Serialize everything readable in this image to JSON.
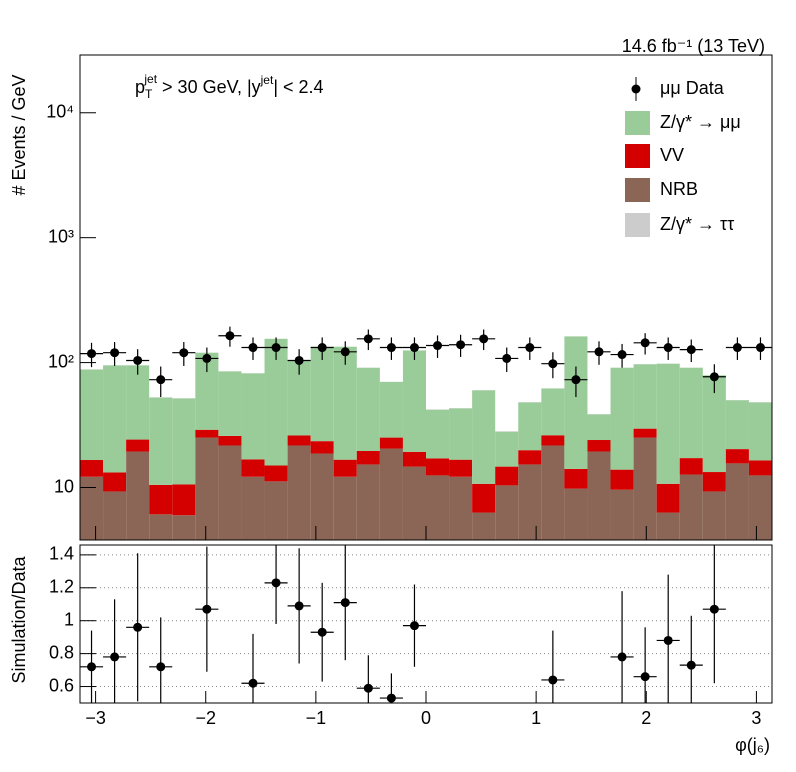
{
  "chart_data": [
    {
      "type": "stacked_histogram",
      "lumi": "14.6 fb⁻¹ (13 TeV)",
      "annotation": [
        "p",
        "T",
        "jet",
        " > 30 GeV,  |y",
        "jet",
        "| < 2.4"
      ],
      "ylabel": "# Events / GeV",
      "log_y": true,
      "xlim": [
        -3.1416,
        3.1416
      ],
      "ylim": [
        3.8,
        29000
      ],
      "yticks": [
        10,
        {
          "value": 100,
          "label": "10²"
        },
        {
          "value": 1000,
          "label": "10³"
        },
        {
          "value": 10000,
          "label": "10⁴"
        }
      ],
      "bins": [
        -3.1416,
        -2.9322,
        -2.7227,
        -2.5133,
        -2.3038,
        -2.0944,
        -1.885,
        -1.6755,
        -1.4661,
        -1.2566,
        -1.0472,
        -0.8378,
        -0.6283,
        -0.4189,
        -0.2094,
        0,
        0.2094,
        0.4189,
        0.6283,
        0.8378,
        1.0472,
        1.2566,
        1.4661,
        1.6755,
        1.885,
        2.0944,
        2.3038,
        2.5133,
        2.7227,
        2.9322,
        3.1416
      ],
      "series": [
        {
          "name": "NRB",
          "color": "#8b6656",
          "values": [
            12.2,
            9.3,
            19.4,
            6.1,
            6.0,
            25.1,
            21.7,
            12.2,
            11.2,
            21.7,
            18.7,
            12.2,
            15.3,
            20.5,
            14.7,
            12.5,
            12.2,
            6.3,
            10.4,
            15.3,
            21.7,
            9.8,
            19.4,
            9.6,
            25.1,
            6.3,
            12.7,
            9.3,
            15.6,
            12.5
          ]
        },
        {
          "name": "VV",
          "color": "#d40000",
          "values": [
            4.4,
            3.9,
            4.8,
            4.4,
            4.6,
            3.9,
            4.2,
            4.6,
            3.8,
            4.4,
            4.8,
            4.5,
            4.3,
            4.6,
            4.6,
            4.6,
            4.5,
            4.4,
            4.3,
            4.6,
            4.5,
            4.3,
            4.6,
            4.3,
            4.5,
            4.4,
            4.5,
            4.0,
            4.7,
            4.0
          ]
        },
        {
          "name": "Z/γ* → μμ",
          "color": "#99cc99",
          "values": [
            71.4,
            81.8,
            70.8,
            42,
            41,
            91,
            59.1,
            65.2,
            140,
            77.9,
            110.5,
            117.3,
            71.4,
            44.9,
            105.7,
            24.9,
            26.3,
            49.3,
            13.3,
            28.1,
            35.8,
            147.9,
            14.5,
            77.1,
            67.4,
            87.3,
            73.8,
            65.7,
            29.7,
            31.5
          ]
        },
        {
          "name": "Z/γ* → ττ",
          "color": "#cccccc",
          "values": [
            0.2,
            0.2,
            0.2,
            0.2,
            0.2,
            0.2,
            0.2,
            0.2,
            0.2,
            0.2,
            0.2,
            0.2,
            0.2,
            0.2,
            0.2,
            0.2,
            0.2,
            0.2,
            0.2,
            0.2,
            0.2,
            0.2,
            0.2,
            0.2,
            0.2,
            0.2,
            0.2,
            0.2,
            0.2,
            0.2
          ]
        }
      ],
      "data": {
        "name": "μμ Data",
        "color": "#000000",
        "values": [
          118,
          120,
          104,
          73,
          120,
          108,
          164,
          132,
          132,
          104,
          132,
          122,
          155,
          132,
          132,
          137,
          139,
          155,
          108,
          132,
          98,
          73,
          122,
          116,
          144,
          132,
          127,
          77,
          132,
          132
        ],
        "errors": [
          26,
          26,
          24,
          20,
          26,
          24,
          30,
          27,
          27,
          24,
          27,
          26,
          29,
          27,
          27,
          28,
          28,
          29,
          24,
          27,
          23,
          20,
          26,
          25,
          28,
          27,
          26,
          20,
          27,
          27
        ]
      }
    },
    {
      "type": "errorbar",
      "ylabel": "Simulation/Data",
      "xlabel": "φ(j₆)",
      "xticks": [
        {
          "value": -3,
          "label": "−3"
        },
        {
          "value": -2,
          "label": "−2"
        },
        {
          "value": -1,
          "label": "−1"
        },
        0,
        1,
        2,
        3
      ],
      "ylim": [
        0.5,
        1.46
      ],
      "yticks": [
        0.6,
        0.8,
        1,
        1.2,
        1.4
      ],
      "grid": true,
      "color": "#000000",
      "values": [
        0.72,
        0.78,
        0.96,
        0.72,
        null,
        1.07,
        null,
        0.62,
        1.23,
        1.09,
        0.93,
        1.11,
        0.59,
        0.53,
        0.97,
        null,
        null,
        null,
        null,
        null,
        0.64,
        null,
        null,
        0.78,
        0.66,
        0.88,
        0.73,
        1.07,
        null,
        null
      ],
      "errors": [
        0.22,
        0.35,
        0.45,
        0.3,
        null,
        0.38,
        null,
        0.3,
        0.25,
        0.35,
        0.3,
        0.35,
        0.2,
        0.15,
        0.25,
        null,
        null,
        null,
        null,
        null,
        0.3,
        null,
        null,
        0.4,
        0.3,
        0.4,
        0.3,
        0.45,
        null,
        null
      ]
    }
  ]
}
